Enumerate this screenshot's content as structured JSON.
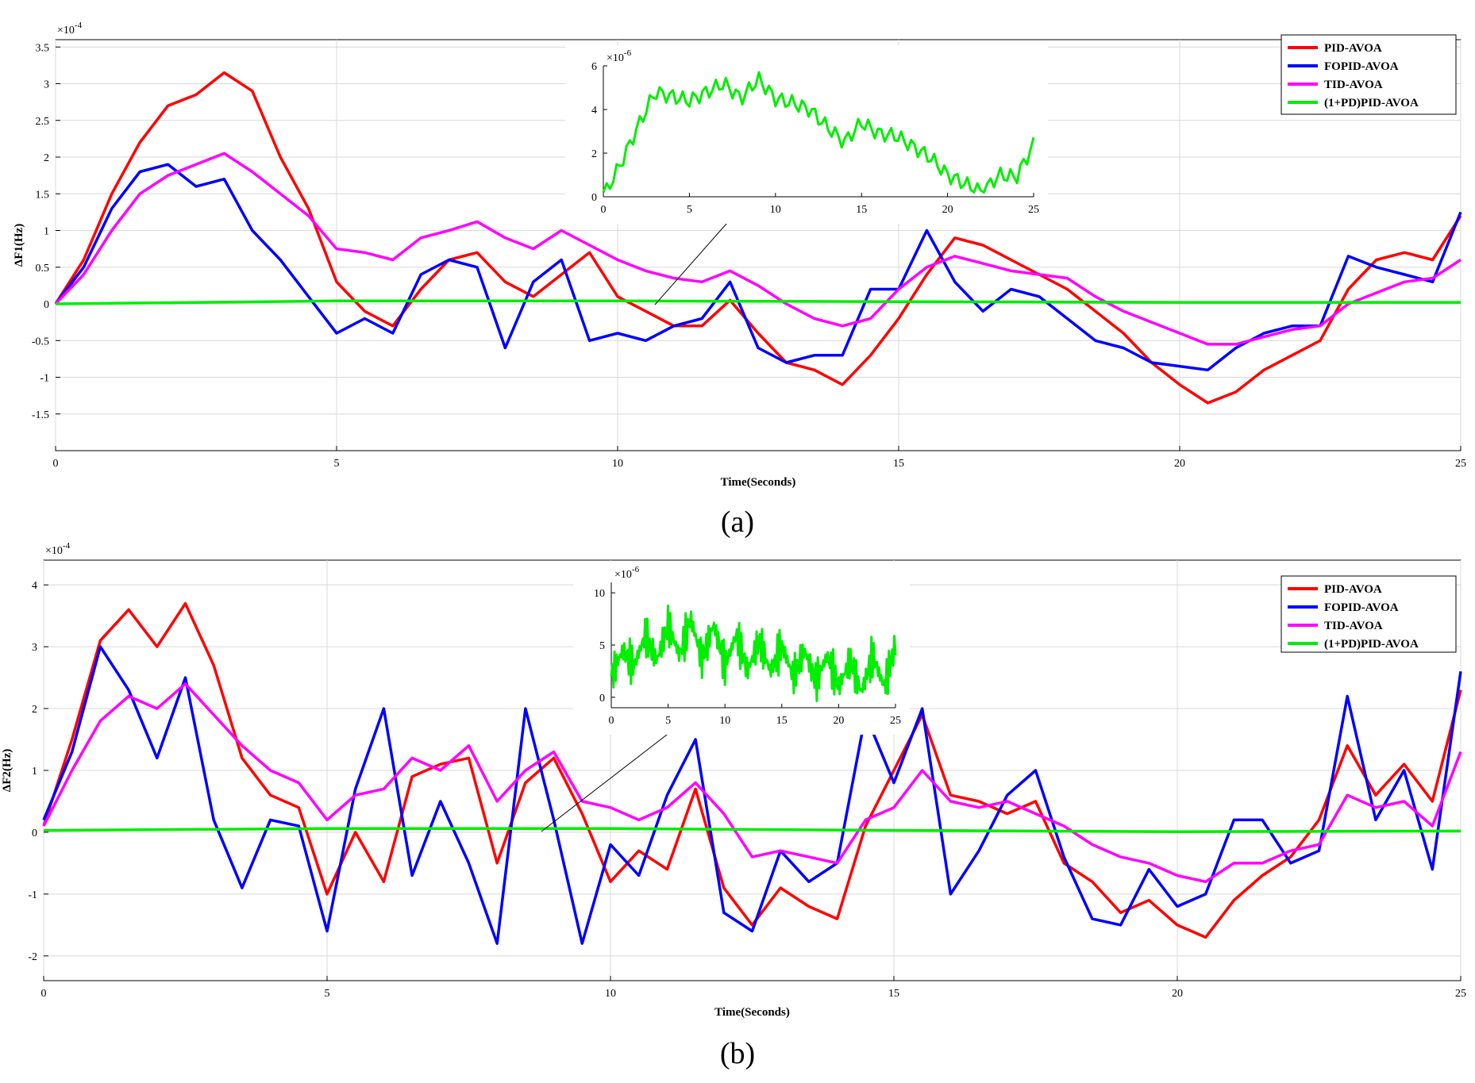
{
  "chart_data": [
    {
      "type": "line",
      "caption": "(a)",
      "xlabel": "Time(Seconds)",
      "ylabel": "ΔF1(Hz)",
      "y_exponent": "-4",
      "xlim": [
        0,
        25
      ],
      "ylim": [
        -2,
        3.6
      ],
      "xticks": [
        0,
        5,
        10,
        15,
        20,
        25
      ],
      "yticks": [
        -1.5,
        -1,
        -0.5,
        0,
        0.5,
        1,
        1.5,
        2,
        2.5,
        3,
        3.5
      ],
      "ytick_labels": [
        "-1.5",
        "-1",
        "-0.5",
        "0",
        "0.5",
        "1",
        "1.5",
        "2",
        "2.5",
        "3",
        "3.5"
      ],
      "legend_position": "top-right",
      "series": [
        {
          "name": "PID-AVOA",
          "color": "#ff0000",
          "x": [
            0,
            0.5,
            1,
            1.5,
            2,
            2.5,
            3,
            3.5,
            4,
            4.5,
            5,
            5.5,
            6,
            6.5,
            7,
            7.5,
            8,
            8.5,
            9,
            9.5,
            10,
            10.5,
            11,
            11.5,
            12,
            12.5,
            13,
            13.5,
            14,
            14.5,
            15,
            15.5,
            16,
            16.5,
            17,
            17.5,
            18,
            18.5,
            19,
            19.5,
            20,
            20.5,
            21,
            21.5,
            22,
            22.5,
            23,
            23.5,
            24,
            24.5,
            25
          ],
          "y": [
            0,
            0.6,
            1.5,
            2.2,
            2.7,
            2.85,
            3.15,
            2.9,
            2.0,
            1.3,
            0.3,
            -0.1,
            -0.3,
            0.2,
            0.6,
            0.7,
            0.3,
            0.1,
            0.4,
            0.7,
            0.1,
            -0.1,
            -0.3,
            -0.3,
            0.05,
            -0.4,
            -0.8,
            -0.9,
            -1.1,
            -0.7,
            -0.2,
            0.4,
            0.9,
            0.8,
            0.6,
            0.4,
            0.2,
            -0.1,
            -0.4,
            -0.8,
            -1.1,
            -1.35,
            -1.2,
            -0.9,
            -0.7,
            -0.5,
            0.2,
            0.6,
            0.7,
            0.6,
            1.2
          ]
        },
        {
          "name": "FOPID-AVOA",
          "color": "#0000ff",
          "x": [
            0,
            0.5,
            1,
            1.5,
            2,
            2.5,
            3,
            3.5,
            4,
            4.5,
            5,
            5.5,
            6,
            6.5,
            7,
            7.5,
            8,
            8.5,
            9,
            9.5,
            10,
            10.5,
            11,
            11.5,
            12,
            12.5,
            13,
            13.5,
            14,
            14.5,
            15,
            15.5,
            16,
            16.5,
            17,
            17.5,
            18,
            18.5,
            19,
            19.5,
            20,
            20.5,
            21,
            21.5,
            22,
            22.5,
            23,
            23.5,
            24,
            24.5,
            25
          ],
          "y": [
            0,
            0.5,
            1.3,
            1.8,
            1.9,
            1.6,
            1.7,
            1.0,
            0.6,
            0.1,
            -0.4,
            -0.2,
            -0.4,
            0.4,
            0.6,
            0.5,
            -0.6,
            0.3,
            0.6,
            -0.5,
            -0.4,
            -0.5,
            -0.3,
            -0.2,
            0.3,
            -0.6,
            -0.8,
            -0.7,
            -0.7,
            0.2,
            0.2,
            1.0,
            0.3,
            -0.1,
            0.2,
            0.1,
            -0.2,
            -0.5,
            -0.6,
            -0.8,
            -0.85,
            -0.9,
            -0.6,
            -0.4,
            -0.3,
            -0.3,
            0.65,
            0.5,
            0.4,
            0.3,
            1.25
          ]
        },
        {
          "name": "TID-AVOA",
          "color": "#ff00ff",
          "x": [
            0,
            0.5,
            1,
            1.5,
            2,
            2.5,
            3,
            3.5,
            4,
            4.5,
            5,
            5.5,
            6,
            6.5,
            7,
            7.5,
            8,
            8.5,
            9,
            9.5,
            10,
            10.5,
            11,
            11.5,
            12,
            12.5,
            13,
            13.5,
            14,
            14.5,
            15,
            15.5,
            16,
            16.5,
            17,
            17.5,
            18,
            18.5,
            19,
            19.5,
            20,
            20.5,
            21,
            21.5,
            22,
            22.5,
            23,
            23.5,
            24,
            24.5,
            25
          ],
          "y": [
            0,
            0.4,
            1.0,
            1.5,
            1.75,
            1.9,
            2.05,
            1.8,
            1.5,
            1.2,
            0.75,
            0.7,
            0.6,
            0.9,
            1.0,
            1.12,
            0.9,
            0.75,
            1.0,
            0.8,
            0.6,
            0.45,
            0.35,
            0.3,
            0.45,
            0.25,
            0.0,
            -0.2,
            -0.3,
            -0.2,
            0.2,
            0.5,
            0.65,
            0.55,
            0.45,
            0.4,
            0.35,
            0.1,
            -0.1,
            -0.25,
            -0.4,
            -0.55,
            -0.55,
            -0.45,
            -0.35,
            -0.3,
            0.0,
            0.15,
            0.3,
            0.35,
            0.6
          ]
        },
        {
          "name": "(1+PD)PID-AVOA",
          "color": "#00ee00",
          "x": [
            0,
            5,
            10,
            15,
            20,
            25
          ],
          "y": [
            0,
            0.04,
            0.04,
            0.03,
            0.02,
            0.02
          ]
        }
      ],
      "inset": {
        "x_exponent": "",
        "y_exponent": "-6",
        "xlim": [
          0,
          25
        ],
        "ylim": [
          0,
          6
        ],
        "xticks": [
          0,
          5,
          10,
          15,
          20,
          25
        ],
        "yticks": [
          0,
          2,
          4,
          6
        ],
        "series": {
          "name": "(1+PD)PID-AVOA",
          "color": "#00ee00",
          "x": [
            0,
            1,
            2,
            3,
            4,
            5,
            6,
            7,
            8,
            9,
            10,
            11,
            12,
            13,
            14,
            15,
            16,
            17,
            18,
            19,
            20,
            21,
            22,
            23,
            24,
            25
          ],
          "y": [
            0,
            1.5,
            3.2,
            4.8,
            4.6,
            4.4,
            4.8,
            5.2,
            4.5,
            5.4,
            4.5,
            4.3,
            4.0,
            3.2,
            2.5,
            3.4,
            2.9,
            2.8,
            2.3,
            1.8,
            1.0,
            0.6,
            0.2,
            1.0,
            0.9,
            2.4
          ]
        }
      }
    },
    {
      "type": "line",
      "caption": "(b)",
      "xlabel": "Time(Seconds)",
      "ylabel": "ΔF2(Hz)",
      "y_exponent": "-4",
      "xlim": [
        0,
        25
      ],
      "ylim": [
        -2.4,
        4.4
      ],
      "xticks": [
        0,
        5,
        10,
        15,
        20,
        25
      ],
      "yticks": [
        -2,
        -1,
        0,
        1,
        2,
        3,
        4
      ],
      "ytick_labels": [
        "-2",
        "-1",
        "0",
        "1",
        "2",
        "3",
        "4"
      ],
      "legend_position": "top-right",
      "series": [
        {
          "name": "PID-AVOA",
          "color": "#ff0000",
          "x": [
            0,
            0.5,
            1,
            1.5,
            2,
            2.5,
            3,
            3.5,
            4,
            4.5,
            5,
            5.5,
            6,
            6.5,
            7,
            7.5,
            8,
            8.5,
            9,
            9.5,
            10,
            10.5,
            11,
            11.5,
            12,
            12.5,
            13,
            13.5,
            14,
            14.5,
            15,
            15.5,
            16,
            16.5,
            17,
            17.5,
            18,
            18.5,
            19,
            19.5,
            20,
            20.5,
            21,
            21.5,
            22,
            22.5,
            23,
            23.5,
            24,
            24.5,
            25
          ],
          "y": [
            0.1,
            1.5,
            3.1,
            3.6,
            3.0,
            3.7,
            2.7,
            1.2,
            0.6,
            0.4,
            -1.0,
            0.0,
            -0.8,
            0.9,
            1.1,
            1.2,
            -0.5,
            0.8,
            1.2,
            0.3,
            -0.8,
            -0.3,
            -0.6,
            0.7,
            -0.9,
            -1.5,
            -0.9,
            -1.2,
            -1.4,
            0.1,
            1.0,
            1.9,
            0.6,
            0.5,
            0.3,
            0.5,
            -0.5,
            -0.8,
            -1.3,
            -1.1,
            -1.5,
            -1.7,
            -1.1,
            -0.7,
            -0.4,
            0.2,
            1.4,
            0.6,
            1.1,
            0.5,
            2.3
          ]
        },
        {
          "name": "FOPID-AVOA",
          "color": "#0000ff",
          "x": [
            0,
            0.5,
            1,
            1.5,
            2,
            2.5,
            3,
            3.5,
            4,
            4.5,
            5,
            5.5,
            6,
            6.5,
            7,
            7.5,
            8,
            8.5,
            9,
            9.5,
            10,
            10.5,
            11,
            11.5,
            12,
            12.5,
            13,
            13.5,
            14,
            14.5,
            15,
            15.5,
            16,
            16.5,
            17,
            17.5,
            18,
            18.5,
            19,
            19.5,
            20,
            20.5,
            21,
            21.5,
            22,
            22.5,
            23,
            23.5,
            24,
            24.5,
            25
          ],
          "y": [
            0.2,
            1.3,
            3.0,
            2.3,
            1.2,
            2.5,
            0.2,
            -0.9,
            0.2,
            0.1,
            -1.6,
            0.7,
            2.0,
            -0.7,
            0.5,
            -0.5,
            -1.8,
            2.0,
            0.2,
            -1.8,
            -0.2,
            -0.7,
            0.6,
            1.5,
            -1.3,
            -1.6,
            -0.3,
            -0.8,
            -0.5,
            1.9,
            0.8,
            2.0,
            -1.0,
            -0.3,
            0.6,
            1.0,
            -0.4,
            -1.4,
            -1.5,
            -0.6,
            -1.2,
            -1.0,
            0.2,
            0.2,
            -0.5,
            -0.3,
            2.2,
            0.2,
            1.0,
            -0.6,
            2.6
          ]
        },
        {
          "name": "TID-AVOA",
          "color": "#ff00ff",
          "x": [
            0,
            0.5,
            1,
            1.5,
            2,
            2.5,
            3,
            3.5,
            4,
            4.5,
            5,
            5.5,
            6,
            6.5,
            7,
            7.5,
            8,
            8.5,
            9,
            9.5,
            10,
            10.5,
            11,
            11.5,
            12,
            12.5,
            13,
            13.5,
            14,
            14.5,
            15,
            15.5,
            16,
            16.5,
            17,
            17.5,
            18,
            18.5,
            19,
            19.5,
            20,
            20.5,
            21,
            21.5,
            22,
            22.5,
            23,
            23.5,
            24,
            24.5,
            25
          ],
          "y": [
            0.1,
            1.0,
            1.8,
            2.2,
            2.0,
            2.4,
            1.9,
            1.4,
            1.0,
            0.8,
            0.2,
            0.6,
            0.7,
            1.2,
            1.0,
            1.4,
            0.5,
            1.0,
            1.3,
            0.5,
            0.4,
            0.2,
            0.4,
            0.8,
            0.3,
            -0.4,
            -0.3,
            -0.4,
            -0.5,
            0.2,
            0.4,
            1.0,
            0.5,
            0.4,
            0.5,
            0.3,
            0.1,
            -0.2,
            -0.4,
            -0.5,
            -0.7,
            -0.8,
            -0.5,
            -0.5,
            -0.3,
            -0.2,
            0.6,
            0.4,
            0.5,
            0.1,
            1.3
          ]
        },
        {
          "name": "(1+PD)PID-AVOA",
          "color": "#00ee00",
          "x": [
            0,
            5,
            10,
            15,
            20,
            25
          ],
          "y": [
            0.03,
            0.06,
            0.06,
            0.03,
            0.01,
            0.02
          ]
        }
      ],
      "inset": {
        "x_exponent": "",
        "y_exponent": "-6",
        "xlim": [
          0,
          25
        ],
        "ylim": [
          -1,
          11
        ],
        "xticks": [
          0,
          5,
          10,
          15,
          20,
          25
        ],
        "yticks": [
          0,
          5,
          10
        ],
        "series": {
          "name": "(1+PD)PID-AVOA",
          "color": "#00ee00",
          "x": [
            0,
            1,
            2,
            3,
            4,
            5,
            6,
            7,
            8,
            9,
            10,
            11,
            12,
            13,
            14,
            15,
            16,
            17,
            18,
            19,
            20,
            21,
            22,
            23,
            24,
            25
          ],
          "y": [
            2,
            4.5,
            3,
            6,
            3.5,
            7,
            4,
            7.5,
            3.5,
            7,
            3,
            6,
            2.5,
            5.5,
            2.5,
            5,
            2,
            4.5,
            1.5,
            4,
            1,
            3.5,
            0.5,
            4,
            1,
            5
          ]
        }
      }
    }
  ]
}
